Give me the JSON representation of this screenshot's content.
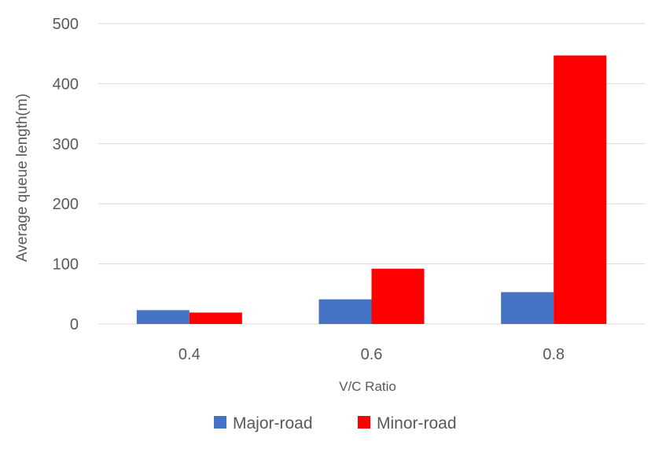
{
  "chart_data": {
    "type": "bar",
    "categories": [
      "0.4",
      "0.6",
      "0.8"
    ],
    "series": [
      {
        "name": "Major-road",
        "values": [
          23,
          41,
          53
        ],
        "color": "#4472c4"
      },
      {
        "name": "Minor-road",
        "values": [
          19,
          92,
          447
        ],
        "color": "#ff0000"
      }
    ],
    "title": "",
    "xlabel": "V/C Ratio",
    "ylabel": "Average queue length(m)",
    "ylim": [
      0,
      500
    ],
    "yticks": [
      0,
      100,
      200,
      300,
      400,
      500
    ],
    "grid": true,
    "legend": "bottom"
  }
}
